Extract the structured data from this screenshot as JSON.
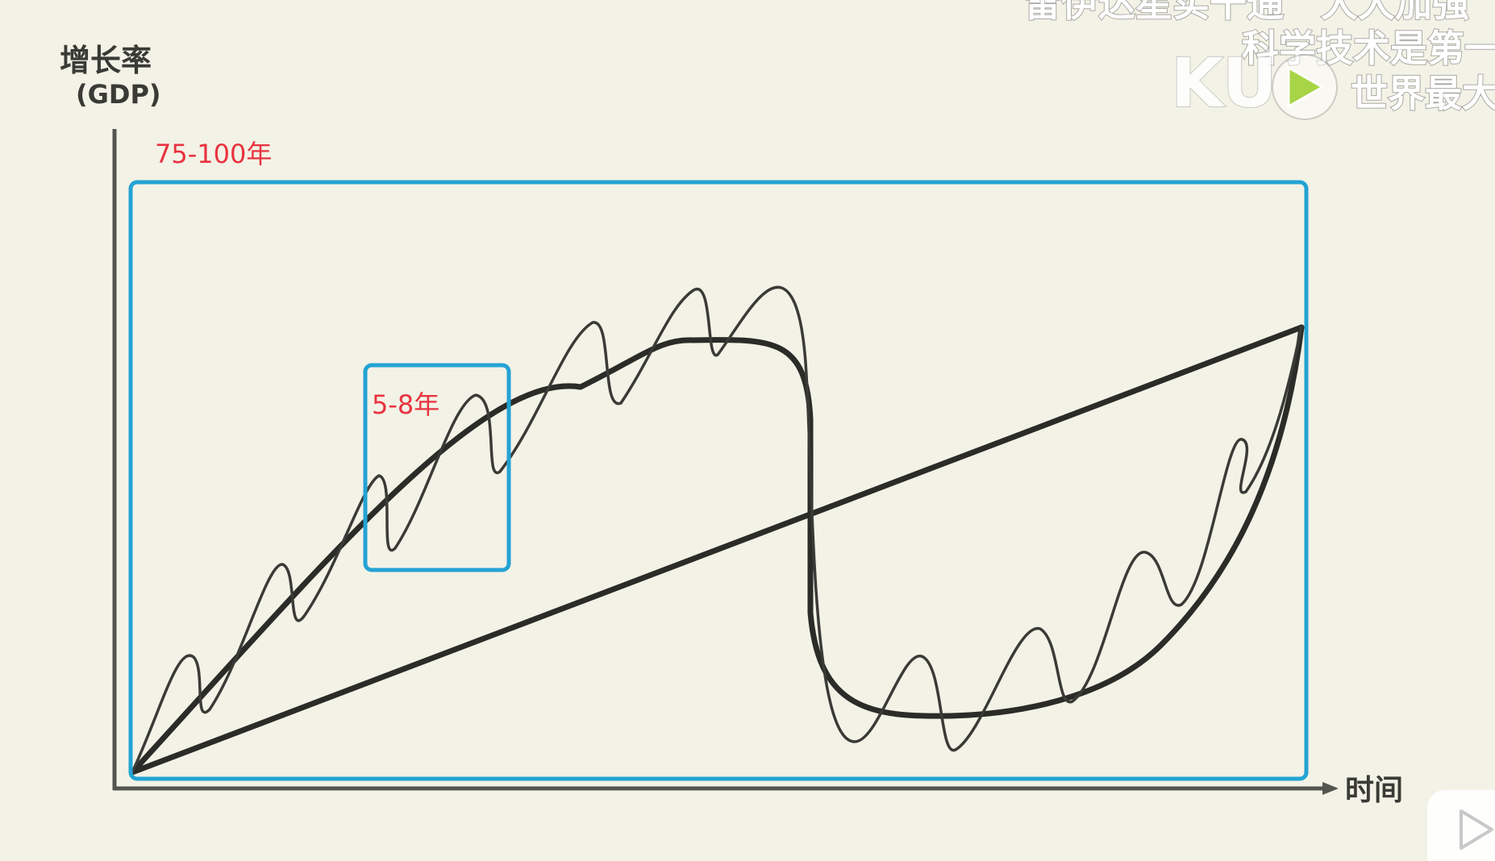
{
  "diagram": {
    "y_axis_title": "增长率",
    "y_axis_subtitle": "(GDP)",
    "x_axis_title": "时间",
    "long_cycle_label": "75-100年",
    "short_cycle_label": "5-8年",
    "box_color": "#23a3d4",
    "annotation_color": "#e8333f",
    "curve_color": "#2b2b28"
  },
  "overlay": {
    "caption_line_1": "雷伊达星实干通　大大加强",
    "caption_line_2": "科学技术是第一",
    "caption_line_3": "世界最大",
    "watermark_text": "KU",
    "watermark_icon": "play-triangle-icon",
    "corner_icon": "play-button-icon"
  }
}
